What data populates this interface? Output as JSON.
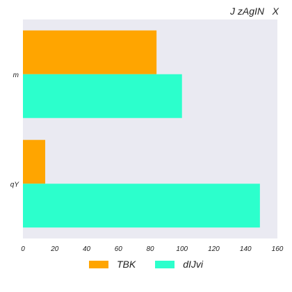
{
  "chart_data": {
    "type": "bar",
    "orientation": "horizontal",
    "title": "J zAgIN   X",
    "categories": [
      "m",
      "qY"
    ],
    "series": [
      {
        "name": "TBK",
        "color": "#FFA500",
        "values": [
          84,
          14
        ]
      },
      {
        "name": "dIJvi",
        "color": "#2CFFCC",
        "values": [
          100,
          149
        ]
      }
    ],
    "xlim": [
      0,
      160
    ],
    "x_ticks": [
      0,
      20,
      40,
      60,
      80,
      100,
      120,
      140,
      160
    ],
    "plot_background": "#EAEAF2",
    "grid": false,
    "legend_position": "bottom-center"
  }
}
